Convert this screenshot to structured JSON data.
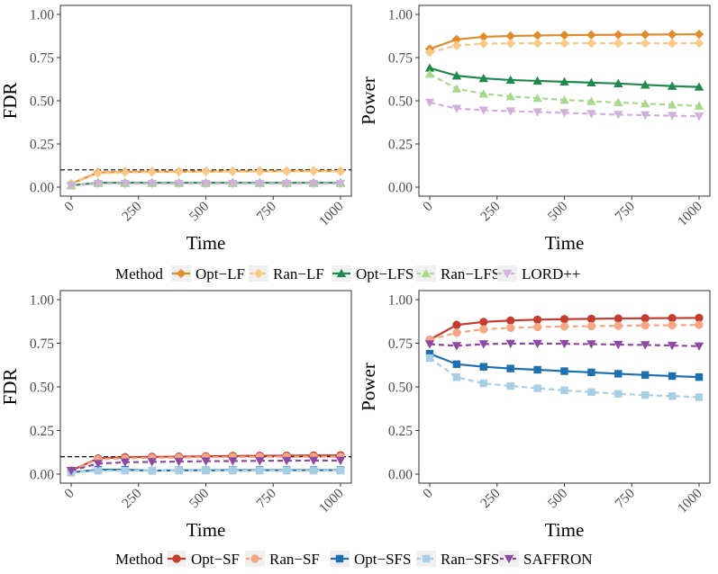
{
  "chart_data": [
    {
      "type": "line",
      "title": "",
      "xlabel": "Time",
      "ylabel": "FDR",
      "xlim": [
        0,
        1000
      ],
      "ylim": [
        0,
        1
      ],
      "xticks": [
        0,
        250,
        500,
        750,
        1000
      ],
      "yticks": [
        "0.00",
        "0.25",
        "0.50",
        "0.75",
        "1.00"
      ],
      "reference_line": 0.1,
      "x": [
        0,
        100,
        200,
        300,
        400,
        500,
        600,
        700,
        800,
        900,
        1000
      ],
      "series": [
        {
          "name": "Opt−LF",
          "values": [
            0.02,
            0.085,
            0.088,
            0.09,
            0.09,
            0.091,
            0.092,
            0.092,
            0.093,
            0.093,
            0.093
          ]
        },
        {
          "name": "Ran−LF",
          "values": [
            0.02,
            0.08,
            0.085,
            0.087,
            0.088,
            0.089,
            0.09,
            0.09,
            0.091,
            0.091,
            0.091
          ]
        },
        {
          "name": "Opt−LFS",
          "values": [
            0.01,
            0.025,
            0.025,
            0.025,
            0.025,
            0.025,
            0.025,
            0.025,
            0.025,
            0.025,
            0.025
          ]
        },
        {
          "name": "Ran−LFS",
          "values": [
            0.01,
            0.022,
            0.022,
            0.022,
            0.022,
            0.022,
            0.022,
            0.022,
            0.022,
            0.022,
            0.022
          ]
        },
        {
          "name": "LORD++",
          "values": [
            0.01,
            0.02,
            0.02,
            0.02,
            0.02,
            0.02,
            0.02,
            0.02,
            0.02,
            0.02,
            0.02
          ]
        }
      ]
    },
    {
      "type": "line",
      "title": "",
      "xlabel": "Time",
      "ylabel": "Power",
      "xlim": [
        0,
        1000
      ],
      "ylim": [
        0,
        1
      ],
      "xticks": [
        0,
        250,
        500,
        750,
        1000
      ],
      "yticks": [
        "0.00",
        "0.25",
        "0.50",
        "0.75",
        "1.00"
      ],
      "x": [
        0,
        100,
        200,
        300,
        400,
        500,
        600,
        700,
        800,
        900,
        1000
      ],
      "series": [
        {
          "name": "Opt−LF",
          "values": [
            0.8,
            0.855,
            0.87,
            0.875,
            0.878,
            0.88,
            0.881,
            0.882,
            0.883,
            0.884,
            0.885
          ]
        },
        {
          "name": "Ran−LF",
          "values": [
            0.78,
            0.82,
            0.83,
            0.832,
            0.833,
            0.833,
            0.833,
            0.833,
            0.833,
            0.833,
            0.833
          ]
        },
        {
          "name": "Opt−LFS",
          "values": [
            0.69,
            0.645,
            0.63,
            0.62,
            0.615,
            0.61,
            0.605,
            0.6,
            0.592,
            0.585,
            0.58
          ]
        },
        {
          "name": "Ran−LFS",
          "values": [
            0.655,
            0.57,
            0.54,
            0.525,
            0.515,
            0.505,
            0.497,
            0.49,
            0.483,
            0.477,
            0.47
          ]
        },
        {
          "name": "LORD++",
          "values": [
            0.49,
            0.455,
            0.445,
            0.44,
            0.435,
            0.43,
            0.425,
            0.42,
            0.417,
            0.413,
            0.41
          ]
        }
      ]
    },
    {
      "type": "line",
      "title": "",
      "xlabel": "Time",
      "ylabel": "FDR",
      "xlim": [
        0,
        1000
      ],
      "ylim": [
        0,
        1
      ],
      "xticks": [
        0,
        250,
        500,
        750,
        1000
      ],
      "yticks": [
        "0.00",
        "0.25",
        "0.50",
        "0.75",
        "1.00"
      ],
      "reference_line": 0.1,
      "x": [
        0,
        100,
        200,
        300,
        400,
        500,
        600,
        700,
        800,
        900,
        1000
      ],
      "series": [
        {
          "name": "Opt−SF",
          "values": [
            0.02,
            0.09,
            0.097,
            0.099,
            0.1,
            0.102,
            0.104,
            0.105,
            0.106,
            0.107,
            0.108
          ]
        },
        {
          "name": "Ran−SF",
          "values": [
            0.02,
            0.085,
            0.09,
            0.093,
            0.095,
            0.097,
            0.098,
            0.099,
            0.1,
            0.1,
            0.1
          ]
        },
        {
          "name": "Opt−SFS",
          "values": [
            0.01,
            0.025,
            0.025,
            0.02,
            0.022,
            0.022,
            0.023,
            0.023,
            0.023,
            0.023,
            0.023
          ]
        },
        {
          "name": "Ran−SFS",
          "values": [
            0.01,
            0.02,
            0.02,
            0.02,
            0.02,
            0.02,
            0.02,
            0.02,
            0.02,
            0.02,
            0.02
          ]
        },
        {
          "name": "SAFFRON",
          "values": [
            0.02,
            0.06,
            0.068,
            0.07,
            0.072,
            0.074,
            0.075,
            0.076,
            0.077,
            0.078,
            0.078
          ]
        }
      ]
    },
    {
      "type": "line",
      "title": "",
      "xlabel": "Time",
      "ylabel": "Power",
      "xlim": [
        0,
        1000
      ],
      "ylim": [
        0,
        1
      ],
      "xticks": [
        0,
        250,
        500,
        750,
        1000
      ],
      "yticks": [
        "0.00",
        "0.25",
        "0.50",
        "0.75",
        "1.00"
      ],
      "x": [
        0,
        100,
        200,
        300,
        400,
        500,
        600,
        700,
        800,
        900,
        1000
      ],
      "series": [
        {
          "name": "Opt−SF",
          "values": [
            0.77,
            0.855,
            0.872,
            0.88,
            0.885,
            0.888,
            0.89,
            0.892,
            0.893,
            0.894,
            0.895
          ]
        },
        {
          "name": "Ran−SF",
          "values": [
            0.77,
            0.81,
            0.83,
            0.838,
            0.843,
            0.846,
            0.848,
            0.85,
            0.852,
            0.853,
            0.855
          ]
        },
        {
          "name": "Opt−SFS",
          "values": [
            0.69,
            0.63,
            0.615,
            0.605,
            0.598,
            0.59,
            0.583,
            0.575,
            0.568,
            0.562,
            0.556
          ]
        },
        {
          "name": "Ran−SFS",
          "values": [
            0.665,
            0.555,
            0.52,
            0.505,
            0.492,
            0.48,
            0.47,
            0.46,
            0.453,
            0.447,
            0.441
          ]
        },
        {
          "name": "SAFFRON",
          "values": [
            0.745,
            0.735,
            0.745,
            0.748,
            0.748,
            0.747,
            0.745,
            0.742,
            0.74,
            0.737,
            0.733
          ]
        }
      ]
    }
  ],
  "legends": [
    {
      "title": "Method",
      "entries": [
        {
          "name": "Opt−LF",
          "color": "#E08C2C",
          "marker": "diamond",
          "dash": false
        },
        {
          "name": "Ran−LF",
          "color": "#FBC985",
          "marker": "diamond",
          "dash": true
        },
        {
          "name": "Opt−LFS",
          "color": "#1F8A4E",
          "marker": "triangle",
          "dash": false
        },
        {
          "name": "Ran−LFS",
          "color": "#A6D98B",
          "marker": "triangle",
          "dash": true
        },
        {
          "name": "LORD++",
          "color": "#CFB1DC",
          "marker": "triangle-down",
          "dash": true
        }
      ]
    },
    {
      "title": "Method",
      "entries": [
        {
          "name": "Opt−SF",
          "color": "#C43C2E",
          "marker": "circle",
          "dash": false
        },
        {
          "name": "Ran−SF",
          "color": "#F4A685",
          "marker": "circle",
          "dash": true
        },
        {
          "name": "Opt−SFS",
          "color": "#1D70B0",
          "marker": "square",
          "dash": false
        },
        {
          "name": "Ran−SFS",
          "color": "#A8CEE4",
          "marker": "square",
          "dash": true
        },
        {
          "name": "SAFFRON",
          "color": "#8E4AA2",
          "marker": "triangle-down",
          "dash": true
        }
      ]
    }
  ]
}
